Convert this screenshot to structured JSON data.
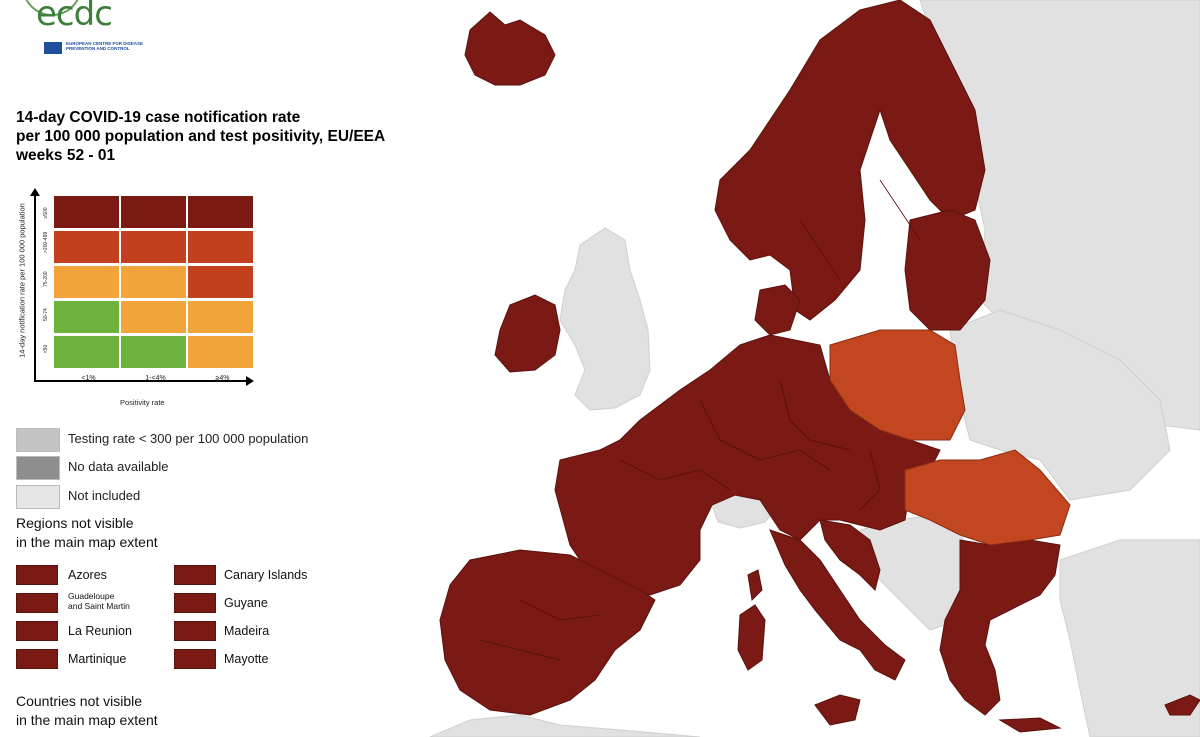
{
  "logo": {
    "text": "ecdc",
    "subtitle": "EUROPEAN CENTRE FOR DISEASE PREVENTION AND CONTROL"
  },
  "title": {
    "line1": "14-day COVID-19 case notification rate",
    "line2": "per 100 000 population and test positivity, EU/EEA",
    "line3": "weeks 52 - 01"
  },
  "matrix": {
    "y_axis_title": "14-day notification rate per 100 000 population",
    "x_axis_title": "Positivity rate",
    "row_labels": [
      "≥500",
      ">200-499",
      "75-200",
      "50-74",
      "<50"
    ],
    "col_labels": [
      "<1%",
      "1-<4%",
      "≥4%"
    ],
    "cells": [
      [
        "#7a1a12",
        "#7a1a12",
        "#7a1a12"
      ],
      [
        "#c2401e",
        "#c2401e",
        "#c2401e"
      ],
      [
        "#f0a43a",
        "#f0a43a",
        "#c2401e"
      ],
      [
        "#6cb23c",
        "#f0a43a",
        "#f0a43a"
      ],
      [
        "#6cb23c",
        "#6cb23c",
        "#f0a43a"
      ]
    ]
  },
  "legend": [
    {
      "label": "Testing rate < 300 per 100 000 population",
      "color": "#c4c4c4"
    },
    {
      "label": "No data available",
      "color": "#8e8e8e"
    },
    {
      "label": "Not included",
      "color": "#e6e6e6"
    }
  ],
  "regions_title_line1": "Regions not visible",
  "regions_title_line2": "in the main map extent",
  "regions": [
    {
      "label": "Azores"
    },
    {
      "label": "Canary Islands"
    },
    {
      "label_line1": "Guadeloupe",
      "label_line2": "and Saint Martin"
    },
    {
      "label": "Guyane"
    },
    {
      "label": "La Reunion"
    },
    {
      "label": "Madeira"
    },
    {
      "label": "Martinique"
    },
    {
      "label": "Mayotte"
    }
  ],
  "countries_title_line1": "Countries not visible",
  "countries_title_line2": "in the main map extent",
  "map_colors": {
    "dark_red": "#7b1a14",
    "red_orange": "#c2461f",
    "light_gray": "#e1e1e1",
    "water": "#ffffff",
    "border": "#5a120e"
  }
}
